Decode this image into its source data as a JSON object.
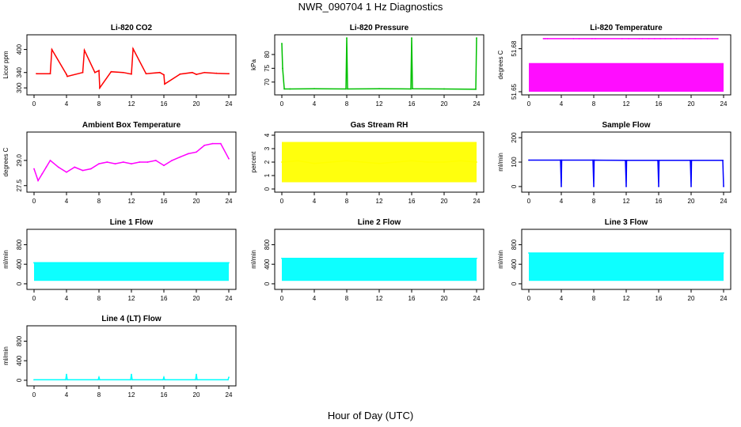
{
  "page_title": "NWR_090704  1 Hz Diagnostics",
  "x_axis_title": "Hour of Day (UTC)",
  "chart_data": [
    {
      "type": "line",
      "title": "Li-820 CO2",
      "ylabel": "Licor ppm",
      "color": "#ff0000",
      "x_ticks": [
        "0",
        "4",
        "8",
        "12",
        "16",
        "20",
        "24"
      ],
      "y_ticks": [
        {
          "value": 300,
          "label": "300"
        },
        {
          "value": 340,
          "label": "340"
        },
        {
          "value": 400,
          "label": "400"
        }
      ],
      "xlim": [
        0,
        24
      ],
      "ylim": [
        290,
        430
      ],
      "series": [
        {
          "x": [
            0.3,
            2.0,
            2.2,
            4.0,
            4.1,
            6.0,
            6.2,
            7.5,
            8.0,
            8.1,
            9.5,
            11.0,
            12.0,
            12.2,
            13.8,
            15.5,
            16.0,
            16.1,
            18.0,
            19.5,
            20.0,
            21.0,
            22.5,
            24.0
          ],
          "y": [
            337,
            337,
            400,
            335,
            330,
            340,
            398,
            340,
            345,
            300,
            342,
            340,
            336,
            402,
            337,
            340,
            334,
            310,
            336,
            340,
            335,
            340,
            338,
            337
          ]
        }
      ]
    },
    {
      "type": "line",
      "title": "Li-820 Pressure",
      "ylabel": "kPa",
      "color": "#00c000",
      "x_ticks": [
        "0",
        "4",
        "8",
        "12",
        "16",
        "20",
        "24"
      ],
      "y_ticks": [
        {
          "value": 70,
          "label": "70"
        },
        {
          "value": 75,
          "label": "75"
        },
        {
          "value": 80,
          "label": "80"
        }
      ],
      "xlim": [
        0,
        24
      ],
      "ylim": [
        66.5,
        86
      ],
      "series": [
        {
          "x": [
            0.0,
            0.1,
            0.3,
            1.0,
            4.0,
            7.9,
            8.0,
            8.1,
            12.0,
            15.9,
            16.0,
            16.1,
            20.0,
            23.9,
            24.0
          ],
          "y": [
            84,
            75,
            67.5,
            67.5,
            67.6,
            67.5,
            86,
            67.5,
            67.6,
            67.5,
            86,
            67.6,
            67.5,
            67.4,
            86
          ]
        }
      ]
    },
    {
      "type": "line",
      "title": "Li-820 Temperature",
      "ylabel": "degrees C",
      "color": "#ff00ff",
      "x_ticks": [
        "0",
        "4",
        "8",
        "12",
        "16",
        "20",
        "24"
      ],
      "y_ticks": [
        {
          "value": 51.65,
          "label": "51.65"
        },
        {
          "value": 51.68,
          "label": "51.68"
        }
      ],
      "xlim": [
        0,
        24
      ],
      "ylim": [
        51.65,
        51.6875
      ],
      "band": {
        "x": [
          0,
          24
        ],
        "y_low": 51.65,
        "y_high": 51.67
      },
      "series": [
        {
          "x": [
            1.8,
            2.0,
            2.3,
            5.5,
            6.2,
            7.8,
            8.2,
            11.5,
            12.3,
            13.6,
            14.0,
            14.8,
            15.5,
            16.2,
            16.8,
            17.5,
            18.2,
            19.0,
            19.8,
            20.5,
            21.2,
            22.0,
            22.6,
            23.3
          ],
          "y": [
            51.687,
            51.687,
            51.687,
            51.687,
            51.687,
            51.687,
            51.687,
            51.687,
            51.687,
            51.687,
            51.687,
            51.687,
            51.687,
            51.687,
            51.687,
            51.687,
            51.687,
            51.687,
            51.687,
            51.687,
            51.687,
            51.687,
            51.687,
            51.687
          ]
        }
      ]
    },
    {
      "type": "line",
      "title": "Ambient Box Temperature",
      "ylabel": "degrees C",
      "color": "#ff00ff",
      "x_ticks": [
        "0",
        "4",
        "8",
        "12",
        "16",
        "20",
        "24"
      ],
      "y_ticks": [
        {
          "value": 27.5,
          "label": "27.5"
        },
        {
          "value": 29.0,
          "label": "29.0"
        }
      ],
      "xlim": [
        0,
        24
      ],
      "ylim": [
        27.3,
        30.5
      ],
      "series": [
        {
          "x": [
            0,
            0.5,
            1,
            1.5,
            2,
            3,
            4,
            5,
            6,
            7,
            8,
            9,
            10,
            11,
            12,
            13,
            14,
            15,
            16,
            17,
            18,
            19,
            20,
            21,
            22,
            23,
            24
          ],
          "y": [
            28.5,
            27.8,
            28.2,
            28.6,
            29.0,
            28.6,
            28.3,
            28.6,
            28.4,
            28.5,
            28.8,
            28.9,
            28.8,
            28.9,
            28.8,
            28.9,
            28.9,
            29.0,
            28.7,
            29.0,
            29.2,
            29.4,
            29.5,
            29.9,
            30.0,
            30.0,
            29.1
          ]
        }
      ]
    },
    {
      "type": "line",
      "title": "Gas Stream RH",
      "ylabel": "percent",
      "color": "#ffff00",
      "x_ticks": [
        "0",
        "4",
        "8",
        "12",
        "16",
        "20",
        "24"
      ],
      "y_ticks": [
        {
          "value": 0,
          "label": "0"
        },
        {
          "value": 1,
          "label": "1"
        },
        {
          "value": 2,
          "label": "2"
        },
        {
          "value": 3,
          "label": "3"
        },
        {
          "value": 4,
          "label": "4"
        }
      ],
      "xlim": [
        0,
        24
      ],
      "ylim": [
        0,
        4
      ],
      "band": {
        "x": [
          0,
          24
        ],
        "y_low": 0.5,
        "y_high": 3.5
      },
      "series": [
        {
          "x": [
            0,
            2,
            4,
            6,
            8,
            10,
            12,
            14,
            16,
            18,
            20,
            22,
            24
          ],
          "y": [
            2.0,
            2.1,
            1.9,
            2.0,
            2.1,
            2.0,
            1.9,
            2.0,
            2.1,
            2.0,
            2.0,
            2.1,
            2.0
          ]
        }
      ]
    },
    {
      "type": "line",
      "title": "Sample Flow",
      "ylabel": "ml/min",
      "color": "#0000ff",
      "x_ticks": [
        "0",
        "4",
        "8",
        "12",
        "16",
        "20",
        "24"
      ],
      "y_ticks": [
        {
          "value": 0,
          "label": "0"
        },
        {
          "value": 100,
          "label": "100"
        },
        {
          "value": 200,
          "label": "200"
        }
      ],
      "xlim": [
        0,
        24
      ],
      "ylim": [
        -10,
        210
      ],
      "series": [
        {
          "x": [
            0,
            3.9,
            4.0,
            4.05,
            7.9,
            8.0,
            8.05,
            11.9,
            12.0,
            12.05,
            15.9,
            16.0,
            16.05,
            19.9,
            20.0,
            20.05,
            23.9,
            24.0
          ],
          "y": [
            108,
            108,
            0,
            108,
            108,
            0,
            108,
            107,
            0,
            107,
            107,
            0,
            107,
            107,
            0,
            107,
            107,
            0
          ]
        }
      ]
    },
    {
      "type": "line",
      "title": "Line 1 Flow",
      "ylabel": "ml/min",
      "color": "#00ffff",
      "x_ticks": [
        "0",
        "4",
        "8",
        "12",
        "16",
        "20",
        "24"
      ],
      "y_ticks": [
        {
          "value": 0,
          "label": "0"
        },
        {
          "value": 400,
          "label": "400"
        },
        {
          "value": 800,
          "label": "800"
        }
      ],
      "xlim": [
        0,
        24
      ],
      "ylim": [
        -50,
        1050
      ],
      "band": {
        "x": [
          0,
          24
        ],
        "y_low": 60,
        "y_high": 430
      },
      "series": [
        {
          "x": [
            0,
            24
          ],
          "y": [
            430,
            430
          ]
        }
      ]
    },
    {
      "type": "line",
      "title": "Line 2 Flow",
      "ylabel": "ml/min",
      "color": "#00ffff",
      "x_ticks": [
        "0",
        "4",
        "8",
        "12",
        "16",
        "20",
        "24"
      ],
      "y_ticks": [
        {
          "value": 0,
          "label": "0"
        },
        {
          "value": 400,
          "label": "400"
        },
        {
          "value": 800,
          "label": "800"
        }
      ],
      "xlim": [
        0,
        24
      ],
      "ylim": [
        -50,
        1050
      ],
      "band": {
        "x": [
          0,
          24
        ],
        "y_low": 60,
        "y_high": 520
      },
      "series": [
        {
          "x": [
            0,
            24
          ],
          "y": [
            520,
            520
          ]
        }
      ]
    },
    {
      "type": "line",
      "title": "Line 3 Flow",
      "ylabel": "ml/min",
      "color": "#00ffff",
      "x_ticks": [
        "0",
        "4",
        "8",
        "12",
        "16",
        "20",
        "24"
      ],
      "y_ticks": [
        {
          "value": 0,
          "label": "0"
        },
        {
          "value": 400,
          "label": "400"
        },
        {
          "value": 800,
          "label": "800"
        }
      ],
      "xlim": [
        0,
        24
      ],
      "ylim": [
        -50,
        1050
      ],
      "band": {
        "x": [
          0,
          24
        ],
        "y_low": 60,
        "y_high": 630
      },
      "series": [
        {
          "x": [
            0,
            24
          ],
          "y": [
            630,
            630
          ]
        }
      ]
    },
    {
      "type": "line",
      "title": "Line 4 (LT) Flow",
      "ylabel": "ml/min",
      "color": "#00ffff",
      "x_ticks": [
        "0",
        "4",
        "8",
        "12",
        "16",
        "20",
        "24"
      ],
      "y_ticks": [
        {
          "value": 0,
          "label": "0"
        },
        {
          "value": 400,
          "label": "400"
        },
        {
          "value": 800,
          "label": "800"
        }
      ],
      "xlim": [
        0,
        24
      ],
      "ylim": [
        -50,
        1050
      ],
      "series": [
        {
          "x": [
            0,
            3.9,
            4.0,
            4.1,
            7.9,
            8.0,
            8.1,
            11.9,
            12.0,
            12.1,
            15.9,
            16.0,
            16.1,
            19.9,
            20.0,
            20.1,
            23.9,
            24.0
          ],
          "y": [
            10,
            10,
            120,
            10,
            10,
            60,
            10,
            10,
            120,
            10,
            10,
            60,
            10,
            10,
            120,
            10,
            10,
            60
          ]
        }
      ]
    }
  ]
}
